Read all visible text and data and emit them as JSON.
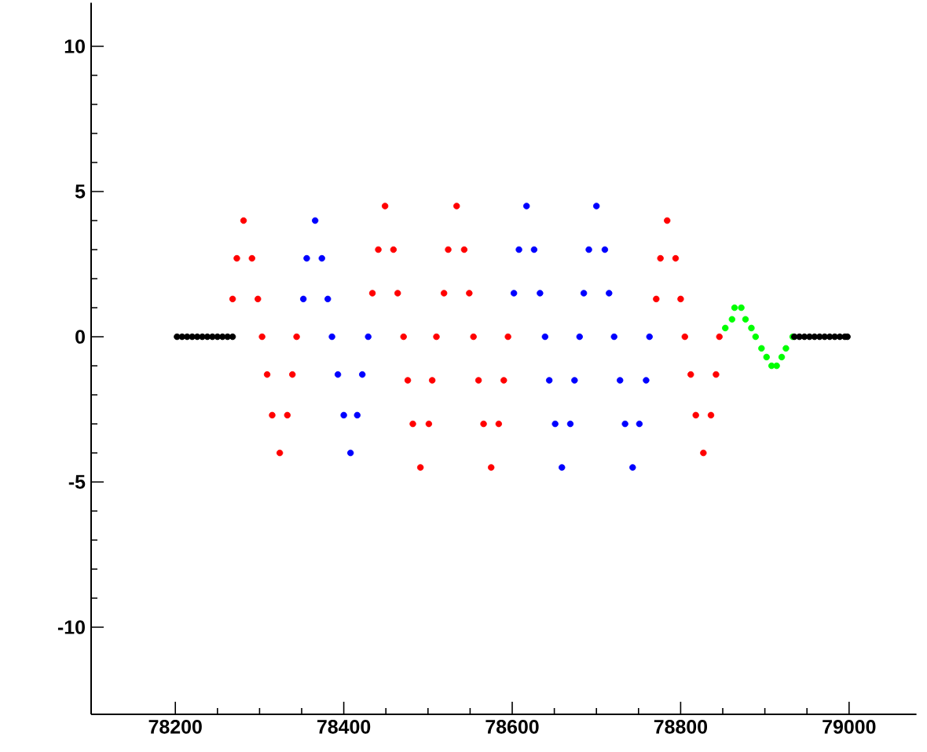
{
  "chart_data": {
    "type": "scatter",
    "xlim": [
      78100,
      79080
    ],
    "ylim": [
      -13,
      11.5
    ],
    "xticks": [
      78200,
      78400,
      78600,
      78800,
      79000
    ],
    "yticks": [
      -10,
      -5,
      0,
      5,
      10
    ],
    "series": [
      {
        "color": "#ff0000",
        "x": [
          78281,
          78273,
          78291,
          78268,
          78298,
          78303,
          78344,
          78309,
          78339,
          78315,
          78333,
          78324,
          78449,
          78441,
          78459,
          78434,
          78464,
          78471,
          78510,
          78476,
          78505,
          78482,
          78501,
          78491,
          78534,
          78524,
          78543,
          78519,
          78549,
          78554,
          78595,
          78560,
          78590,
          78566,
          78584,
          78575,
          78784,
          78776,
          78794,
          78771,
          78800,
          78805,
          78846,
          78812,
          78842,
          78818,
          78836,
          78827
        ],
        "values": [
          4,
          2.7,
          2.7,
          1.3,
          1.3,
          0,
          0,
          -1.3,
          -1.3,
          -2.7,
          -2.7,
          -4,
          4.5,
          3,
          3,
          1.5,
          1.5,
          0,
          0,
          -1.5,
          -1.5,
          -3,
          -3,
          -4.5,
          4.5,
          3,
          3,
          1.5,
          1.5,
          0,
          0,
          -1.5,
          -1.5,
          -3,
          -3,
          -4.5,
          4,
          2.7,
          2.7,
          1.3,
          1.3,
          0,
          0,
          -1.3,
          -1.3,
          -2.7,
          -2.7,
          -4
        ]
      },
      {
        "color": "#0000ff",
        "x": [
          78366,
          78356,
          78374,
          78352,
          78381,
          78386,
          78429,
          78393,
          78422,
          78400,
          78416,
          78408,
          78617,
          78608,
          78626,
          78602,
          78633,
          78639,
          78680,
          78644,
          78674,
          78651,
          78669,
          78659,
          78700,
          78691,
          78710,
          78685,
          78715,
          78721,
          78763,
          78728,
          78759,
          78734,
          78751,
          78743
        ],
        "values": [
          4,
          2.7,
          2.7,
          1.3,
          1.3,
          0,
          0,
          -1.3,
          -1.3,
          -2.7,
          -2.7,
          -4,
          4.5,
          3,
          3,
          1.5,
          1.5,
          0,
          0,
          -1.5,
          -1.5,
          -3,
          -3,
          -4.5,
          4.5,
          3,
          3,
          1.5,
          1.5,
          0,
          0,
          -1.5,
          -1.5,
          -3,
          -3,
          -4.5
        ]
      },
      {
        "color": "#00ff00",
        "x": [
          78853,
          78861,
          78864,
          78872,
          78877,
          78884,
          78889,
          78896,
          78902,
          78908,
          78914,
          78920,
          78925,
          78933
        ],
        "values": [
          0.3,
          0.6,
          1,
          1,
          0.6,
          0.3,
          0,
          -0.4,
          -0.7,
          -1,
          -1,
          -0.7,
          -0.4,
          0
        ]
      },
      {
        "color": "#000000",
        "x": [
          78202,
          78208,
          78214,
          78220,
          78226,
          78232,
          78238,
          78244,
          78250,
          78256,
          78262,
          78268,
          78935,
          78941,
          78947,
          78953,
          78959,
          78965,
          78971,
          78977,
          78983,
          78989,
          78995,
          78998
        ],
        "values": [
          0,
          0,
          0,
          0,
          0,
          0,
          0,
          0,
          0,
          0,
          0,
          0,
          0,
          0,
          0,
          0,
          0,
          0,
          0,
          0,
          0,
          0,
          0,
          0
        ]
      }
    ]
  }
}
